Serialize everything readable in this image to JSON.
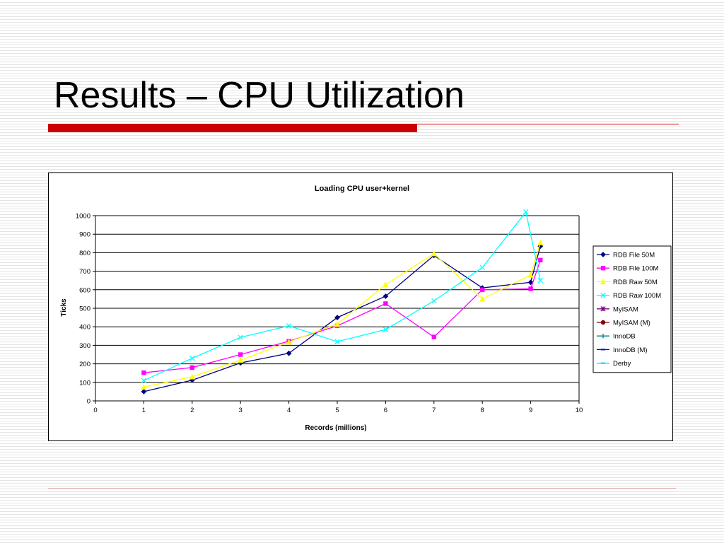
{
  "slide": {
    "title": "Results – CPU Utilization"
  },
  "colors": {
    "accent": "#cc0000",
    "footer_line": "#e8b0b0"
  },
  "chart_data": {
    "type": "line",
    "title": "Loading CPU user+kernel",
    "xlabel": "Records (millions)",
    "ylabel": "Ticks",
    "xlim": [
      0,
      10
    ],
    "ylim": [
      0,
      1000
    ],
    "x_ticks": [
      0,
      1,
      2,
      3,
      4,
      5,
      6,
      7,
      8,
      9,
      10
    ],
    "y_ticks": [
      0,
      100,
      200,
      300,
      400,
      500,
      600,
      700,
      800,
      900,
      1000
    ],
    "grid": "horizontal",
    "legend_position": "right",
    "series": [
      {
        "name": "RDB File 50M",
        "color": "#000080",
        "marker": "diamond",
        "points": [
          [
            1,
            50
          ],
          [
            2,
            112
          ],
          [
            3,
            205
          ],
          [
            4,
            257
          ],
          [
            5,
            450
          ],
          [
            6,
            565
          ],
          [
            7,
            785
          ],
          [
            8,
            610
          ],
          [
            9,
            640
          ],
          [
            9.2,
            835
          ]
        ]
      },
      {
        "name": "RDB File 100M",
        "color": "#ff00ff",
        "marker": "square",
        "points": [
          [
            1,
            152
          ],
          [
            2,
            180
          ],
          [
            3,
            250
          ],
          [
            4,
            322
          ],
          [
            5,
            405
          ],
          [
            6,
            525
          ],
          [
            7,
            345
          ],
          [
            8,
            600
          ],
          [
            9,
            605
          ],
          [
            9.2,
            760
          ]
        ]
      },
      {
        "name": "RDB Raw  50M",
        "color": "#ffff00",
        "marker": "triangle",
        "points": [
          [
            1,
            75
          ],
          [
            2,
            130
          ],
          [
            3,
            220
          ],
          [
            4,
            318
          ],
          [
            5,
            415
          ],
          [
            6,
            628
          ],
          [
            7,
            795
          ],
          [
            8,
            550
          ],
          [
            9,
            680
          ],
          [
            9.2,
            855
          ]
        ]
      },
      {
        "name": "RDB Raw  100M",
        "color": "#00ffff",
        "marker": "x",
        "points": [
          [
            1,
            110
          ],
          [
            2,
            230
          ],
          [
            3,
            343
          ],
          [
            4,
            405
          ],
          [
            5,
            320
          ],
          [
            6,
            385
          ],
          [
            7,
            540
          ],
          [
            8,
            720
          ],
          [
            8.9,
            1020
          ],
          [
            9.2,
            650
          ]
        ]
      },
      {
        "name": "MyISAM",
        "color": "#800080",
        "marker": "star",
        "points": []
      },
      {
        "name": "MyISAM (M)",
        "color": "#800000",
        "marker": "circle",
        "points": []
      },
      {
        "name": "InnoDB",
        "color": "#008080",
        "marker": "plus",
        "points": []
      },
      {
        "name": "InnoDB (M)",
        "color": "#0000ff",
        "marker": "dash",
        "points": []
      },
      {
        "name": "Derby",
        "color": "#00ccff",
        "marker": "dash",
        "points": []
      }
    ]
  }
}
